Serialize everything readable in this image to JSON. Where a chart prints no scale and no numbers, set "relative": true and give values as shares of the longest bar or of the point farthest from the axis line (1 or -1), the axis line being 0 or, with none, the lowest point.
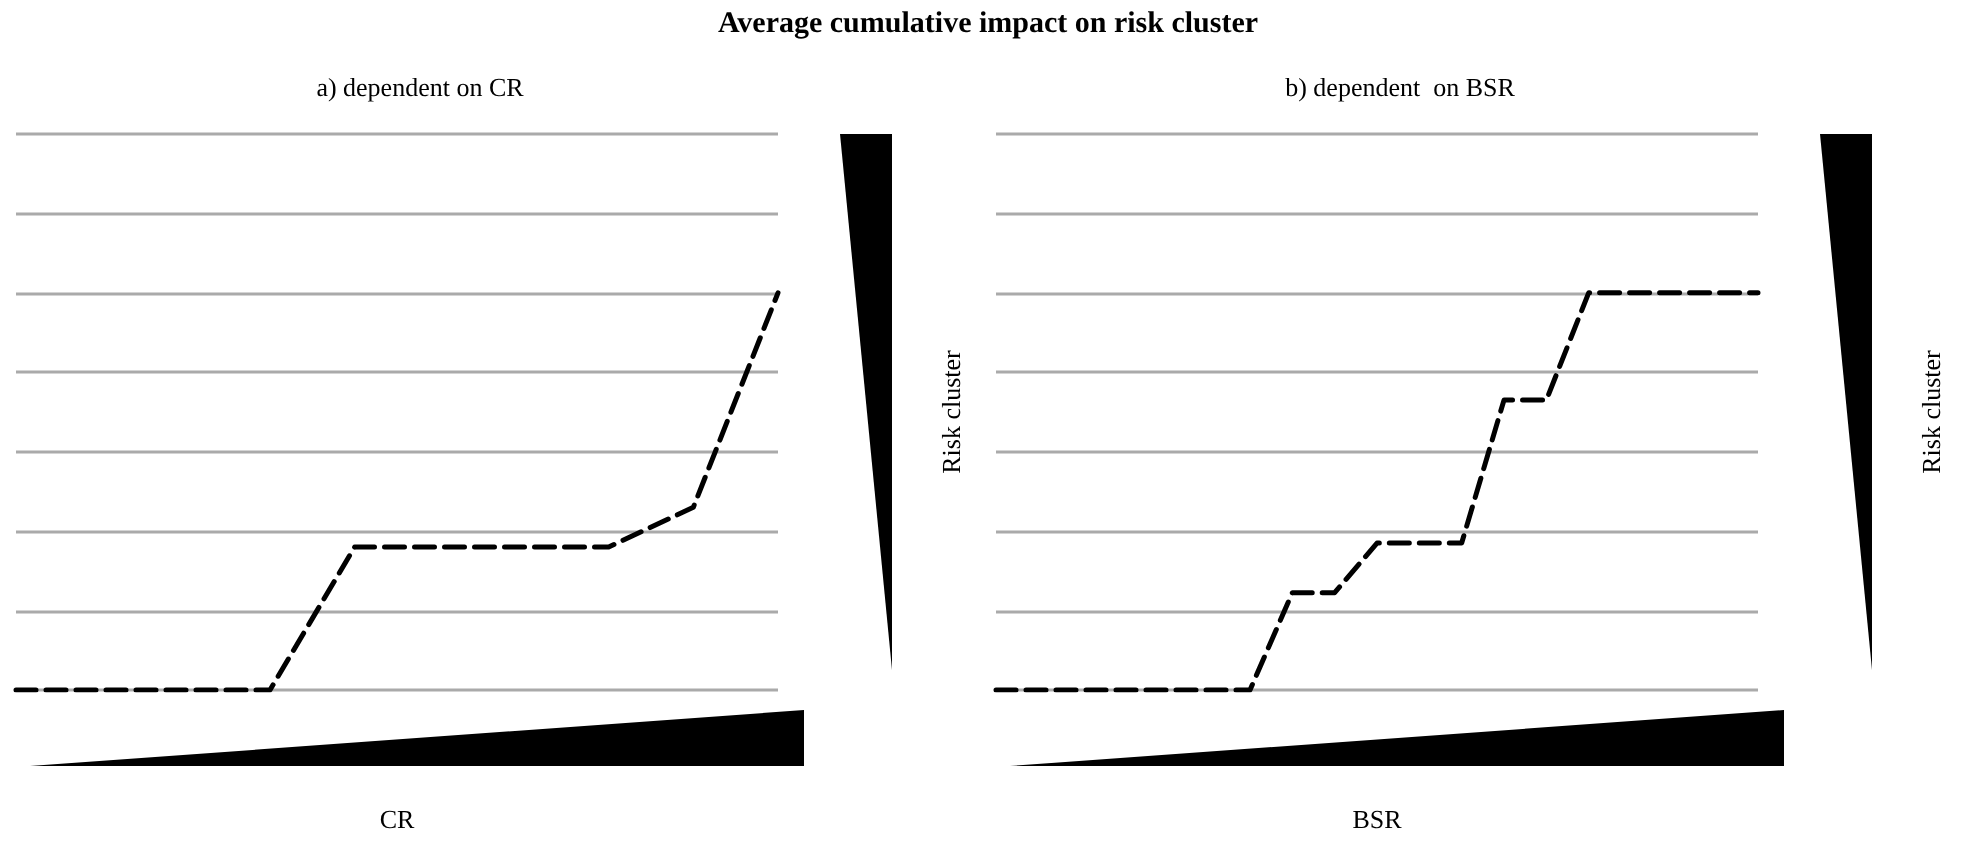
{
  "chart_data": [
    {
      "type": "line",
      "title": "Average cumulative impact on risk cluster",
      "subtitle": "a) dependent on CR",
      "xlabel": "CR",
      "ylabel": "Risk cluster",
      "relative": true,
      "grid": "y",
      "line_style": "dashed",
      "marker": "none",
      "color": "#000000",
      "categories": [
        null,
        null,
        null,
        null,
        null,
        null,
        null,
        null,
        null,
        null
      ],
      "values": [
        0,
        0,
        0,
        0,
        0.36,
        0.36,
        0.36,
        0.36,
        0.46,
        1
      ]
    },
    {
      "type": "line",
      "subtitle": "b) dependent  on BSR",
      "xlabel": "BSR",
      "ylabel": "Risk cluster",
      "relative": true,
      "grid": "y",
      "line_style": "dashed",
      "marker": "none",
      "color": "#000000",
      "categories": [
        null,
        null,
        null,
        null,
        null,
        null,
        null,
        null,
        null,
        null,
        null,
        null,
        null,
        null,
        null,
        null,
        null,
        null,
        null
      ],
      "values": [
        0,
        0,
        0,
        0,
        0,
        0,
        0,
        0.245,
        0.245,
        0.37,
        0.37,
        0.37,
        0.73,
        0.73,
        1,
        1,
        1,
        1,
        1
      ]
    }
  ]
}
